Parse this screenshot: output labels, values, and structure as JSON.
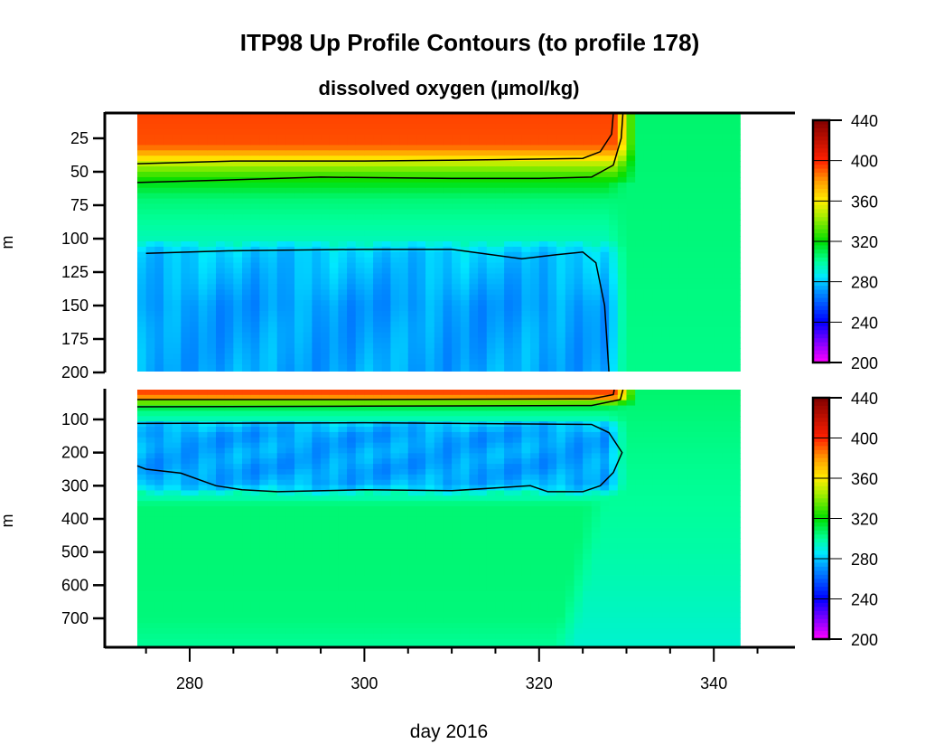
{
  "chart_data": {
    "type": "heatmap",
    "title": "ITP98 Up Profile Contours (to profile 178)",
    "subtitle": "dissolved oxygen (µmol/kg)",
    "xlabel": "day 2016",
    "ylabel": "m",
    "xlim": [
      270.3,
      349.3
    ],
    "x_ticks": [
      "280",
      "300",
      "320",
      "340"
    ],
    "x_minor_tick_step": 5,
    "data_day_range": [
      274,
      343
    ],
    "colorbar": {
      "range": [
        200,
        440
      ],
      "ticks": [
        "440",
        "400",
        "360",
        "320",
        "280",
        "240",
        "200"
      ],
      "colormap": [
        {
          "v": 200,
          "c": "#ff00ff"
        },
        {
          "v": 240,
          "c": "#0000ff"
        },
        {
          "v": 270,
          "c": "#0090ff"
        },
        {
          "v": 285,
          "c": "#00e8ff"
        },
        {
          "v": 300,
          "c": "#00ff99"
        },
        {
          "v": 320,
          "c": "#00dd00"
        },
        {
          "v": 345,
          "c": "#aaee00"
        },
        {
          "v": 360,
          "c": "#ffee00"
        },
        {
          "v": 380,
          "c": "#ff9900"
        },
        {
          "v": 400,
          "c": "#ff2000"
        },
        {
          "v": 440,
          "c": "#800000"
        }
      ]
    },
    "panels": [
      {
        "ylim": [
          6,
          200
        ],
        "y_ticks": [
          "25",
          "50",
          "75",
          "100",
          "125",
          "150",
          "175",
          "200"
        ]
      },
      {
        "ylim": [
          10,
          790
        ],
        "y_ticks": [
          "100",
          "200",
          "300",
          "400",
          "500",
          "600",
          "700"
        ]
      }
    ],
    "profile_before_day_328": {
      "depth": [
        0,
        30,
        38,
        45,
        52,
        58,
        70,
        100,
        110,
        150,
        200,
        250,
        300,
        320,
        360,
        500,
        700,
        790
      ],
      "oxygen": [
        395,
        392,
        370,
        345,
        330,
        318,
        305,
        296,
        280,
        272,
        274,
        272,
        276,
        292,
        305,
        305,
        304,
        300
      ]
    },
    "profile_after_day_330": {
      "depth": [
        0,
        200,
        500,
        790
      ],
      "oxygen": [
        306,
        302,
        298,
        292
      ]
    },
    "contours": [
      {
        "panel": 0,
        "points": [
          [
            274,
            44
          ],
          [
            285,
            42
          ],
          [
            300,
            42
          ],
          [
            315,
            41
          ],
          [
            325,
            40
          ],
          [
            327,
            35
          ],
          [
            328.3,
            22
          ],
          [
            328.5,
            6
          ]
        ]
      },
      {
        "panel": 0,
        "points": [
          [
            274,
            58
          ],
          [
            285,
            56
          ],
          [
            295,
            54
          ],
          [
            310,
            55
          ],
          [
            320,
            55
          ],
          [
            326,
            54
          ],
          [
            328.5,
            45
          ],
          [
            329.4,
            25
          ],
          [
            329.6,
            6
          ]
        ]
      },
      {
        "panel": 0,
        "points": [
          [
            275,
            111
          ],
          [
            285,
            109
          ],
          [
            300,
            108
          ],
          [
            310,
            108
          ],
          [
            318,
            115
          ],
          [
            322,
            112
          ],
          [
            325,
            110
          ],
          [
            326.5,
            118
          ],
          [
            327.5,
            150
          ],
          [
            328,
            200
          ]
        ]
      },
      {
        "panel": 1,
        "points": [
          [
            274,
            40
          ],
          [
            300,
            40
          ],
          [
            326,
            38
          ],
          [
            328.5,
            25
          ],
          [
            328.6,
            10
          ]
        ]
      },
      {
        "panel": 1,
        "points": [
          [
            274,
            62
          ],
          [
            300,
            60
          ],
          [
            326,
            58
          ],
          [
            329.3,
            40
          ],
          [
            329.6,
            10
          ]
        ]
      },
      {
        "panel": 1,
        "points": [
          [
            274,
            112
          ],
          [
            300,
            110
          ],
          [
            326,
            115
          ],
          [
            328,
            140
          ],
          [
            329.5,
            200
          ],
          [
            328.5,
            260
          ],
          [
            327,
            300
          ],
          [
            325,
            318
          ],
          [
            321,
            318
          ],
          [
            319,
            300
          ],
          [
            310,
            315
          ],
          [
            300,
            312
          ],
          [
            290,
            318
          ],
          [
            286,
            312
          ],
          [
            283,
            300
          ],
          [
            279,
            262
          ],
          [
            275,
            250
          ],
          [
            274,
            240
          ]
        ]
      }
    ]
  }
}
